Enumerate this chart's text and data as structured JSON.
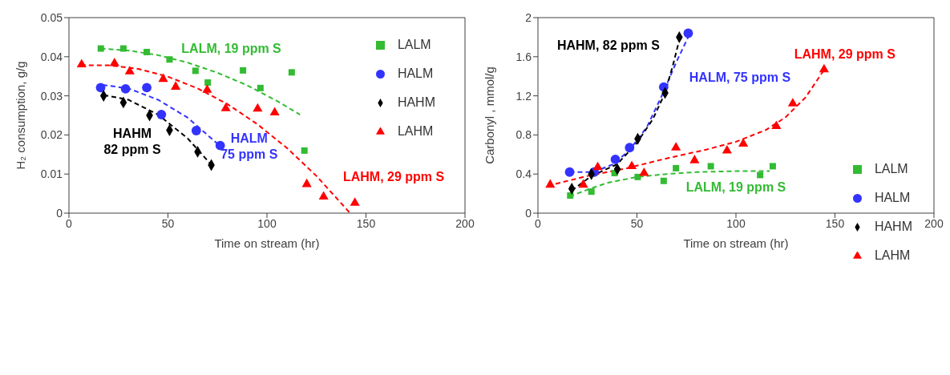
{
  "chart_data": [
    {
      "type": "scatter",
      "xlabel": "Time on stream (hr)",
      "ylabel": "H₂ consumption, g/g",
      "xlim": [
        0,
        200
      ],
      "xticks": [
        0,
        50,
        100,
        150,
        200
      ],
      "ylim": [
        0,
        0.05
      ],
      "yticks": [
        0,
        0.01,
        0.02,
        0.03,
        0.04,
        0.05
      ],
      "legend": "top right",
      "series": [
        {
          "name": "LALM",
          "color": "#33bb33",
          "marker": "square",
          "x": [
            16.1,
            27.5,
            39.3,
            50.8,
            63.9,
            70.1,
            87.9,
            96.7,
            112.5,
            118.9
          ],
          "values": [
            0.0421,
            0.0421,
            0.0412,
            0.0393,
            0.0364,
            0.0334,
            0.0365,
            0.032,
            0.036,
            0.016
          ]
        },
        {
          "name": "HALM",
          "color": "#3333ff",
          "marker": "circle",
          "x": [
            16,
            28.6,
            39.3,
            46.7,
            64.3,
            76.4
          ],
          "values": [
            0.0321,
            0.0318,
            0.0321,
            0.0252,
            0.0211,
            0.0173
          ]
        },
        {
          "name": "HAHM",
          "color": "#000000",
          "marker": "diamond",
          "x": [
            17.5,
            27.5,
            40.7,
            50.8,
            65,
            71.9
          ],
          "values": [
            0.03,
            0.0283,
            0.025,
            0.0212,
            0.0157,
            0.0123
          ]
        },
        {
          "name": "LAHM",
          "color": "#ff0000",
          "marker": "triangle",
          "x": [
            6.4,
            23,
            30.7,
            47.6,
            53.9,
            69.8,
            79.2,
            95.3,
            103.9,
            120.1,
            128.6,
            144.4
          ],
          "values": [
            0.038,
            0.0383,
            0.0362,
            0.0343,
            0.0323,
            0.0315,
            0.0268,
            0.0267,
            0.0257,
            0.0074,
            0.0042,
            0.0026
          ]
        },
        {
          "name": "LALM, 19 ppm S",
          "type": "line",
          "color": "#33bb33",
          "line_style": "dashed",
          "x": [
            16,
            30,
            45,
            60,
            75,
            90,
            105,
            116.7
          ],
          "values": [
            0.0421,
            0.0416,
            0.0404,
            0.0385,
            0.0359,
            0.0327,
            0.0287,
            0.0252
          ]
        },
        {
          "name": "HALM\n75 ppm S",
          "type": "line",
          "color": "#3333ff",
          "line_style": "dashed",
          "x": [
            17,
            30,
            45,
            60,
            76
          ],
          "values": [
            0.0328,
            0.0319,
            0.029,
            0.0244,
            0.0173
          ]
        },
        {
          "name": "HAHM\n82 ppm S",
          "type": "line",
          "color": "#000000",
          "line_style": "dashed",
          "x": [
            17.5,
            30,
            45,
            60,
            72
          ],
          "values": [
            0.0302,
            0.029,
            0.0252,
            0.0191,
            0.0123
          ]
        },
        {
          "name": "LAHM, 29 ppm S",
          "type": "line",
          "color": "#ff0000",
          "line_style": "dashed",
          "x": [
            6,
            20,
            35,
            50,
            65,
            80,
            95,
            110,
            125,
            142
          ],
          "values": [
            0.0378,
            0.0378,
            0.0369,
            0.0349,
            0.0319,
            0.0279,
            0.0228,
            0.0167,
            0.0095,
            0
          ]
        }
      ]
    },
    {
      "type": "scatter",
      "xlabel": "Time on stream (hr)",
      "ylabel": "Carbonyl , mmol/g",
      "xlim": [
        0,
        200
      ],
      "xticks": [
        0,
        50,
        100,
        150,
        200
      ],
      "ylim": [
        0,
        2
      ],
      "yticks": [
        0,
        0.4,
        0.8,
        1.2,
        1.6,
        2
      ],
      "legend": "bottom right",
      "series": [
        {
          "name": "LALM",
          "color": "#33bb33",
          "marker": "square",
          "x": [
            16.3,
            27,
            38.7,
            50.4,
            63.5,
            69.7,
            87.3,
            112.2,
            118.6
          ],
          "values": [
            0.18,
            0.22,
            0.41,
            0.37,
            0.33,
            0.46,
            0.48,
            0.39,
            0.48
          ]
        },
        {
          "name": "HALM",
          "color": "#3333ff",
          "marker": "circle",
          "x": [
            16,
            28.4,
            39.1,
            46.3,
            63.5,
            75.9
          ],
          "values": [
            0.42,
            0.42,
            0.55,
            0.67,
            1.29,
            1.84
          ]
        },
        {
          "name": "HAHM",
          "color": "#000000",
          "marker": "diamond",
          "x": [
            17.1,
            27,
            40.1,
            50.4,
            64.2,
            71.4
          ],
          "values": [
            0.25,
            0.4,
            0.45,
            0.76,
            1.23,
            1.8
          ]
        },
        {
          "name": "LAHM",
          "color": "#ff0000",
          "marker": "triangle",
          "x": [
            6.2,
            22.9,
            30.2,
            47.4,
            53.6,
            69.7,
            79.1,
            95.5,
            103.7,
            120.4,
            128.7,
            144.5
          ],
          "values": [
            0.29,
            0.29,
            0.47,
            0.48,
            0.41,
            0.67,
            0.54,
            0.64,
            0.71,
            0.89,
            1.12,
            1.47
          ]
        },
        {
          "name": "LALM, 19 ppm S",
          "type": "line",
          "color": "#33bb33",
          "line_style": "dashed",
          "x": [
            16,
            25,
            35,
            50,
            65,
            80,
            100,
            117
          ],
          "values": [
            0.17,
            0.24,
            0.31,
            0.37,
            0.4,
            0.42,
            0.43,
            0.43
          ]
        },
        {
          "name": "HALM, 75 ppm S",
          "type": "line",
          "color": "#3333ff",
          "line_style": "dashed",
          "x": [
            16,
            28,
            38,
            46,
            55,
            63,
            70,
            77
          ],
          "values": [
            0.42,
            0.42,
            0.5,
            0.64,
            0.88,
            1.22,
            1.55,
            1.85
          ]
        },
        {
          "name": "HAHM, 82 ppm S",
          "type": "line",
          "color": "#000000",
          "line_style": "dashed",
          "x": [
            17,
            27,
            40,
            50,
            58,
            64,
            68,
            72
          ],
          "values": [
            0.23,
            0.38,
            0.5,
            0.72,
            0.96,
            1.22,
            1.5,
            1.82
          ]
        },
        {
          "name": "LAHM, 29 ppm S",
          "type": "line",
          "color": "#ff0000",
          "line_style": "dashed",
          "x": [
            5,
            25,
            45,
            65,
            85,
            100,
            115,
            125,
            135,
            145
          ],
          "values": [
            0.28,
            0.38,
            0.46,
            0.56,
            0.65,
            0.73,
            0.85,
            0.98,
            1.18,
            1.48
          ]
        }
      ]
    }
  ]
}
